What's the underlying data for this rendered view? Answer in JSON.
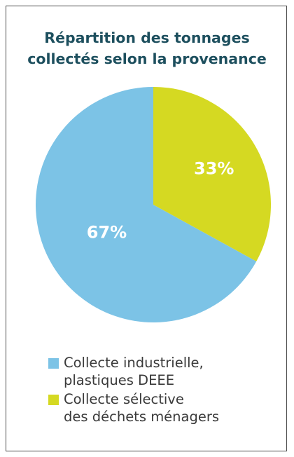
{
  "chart_data": {
    "type": "pie",
    "title": "Répartition des tonnages collectés selon la provenance",
    "title_lines": [
      "Répartition des tonnages",
      "collectés selon la provenance"
    ],
    "slices": [
      {
        "label_lines": [
          "Collecte industrielle,",
          "plastiques DEEE"
        ],
        "value": 67,
        "display": "67%",
        "color": "#7cc3e6"
      },
      {
        "label_lines": [
          "Collecte sélective",
          "des déchets ménagers"
        ],
        "value": 33,
        "display": "33%",
        "color": "#d5d922"
      }
    ],
    "legend_position": "bottom"
  }
}
